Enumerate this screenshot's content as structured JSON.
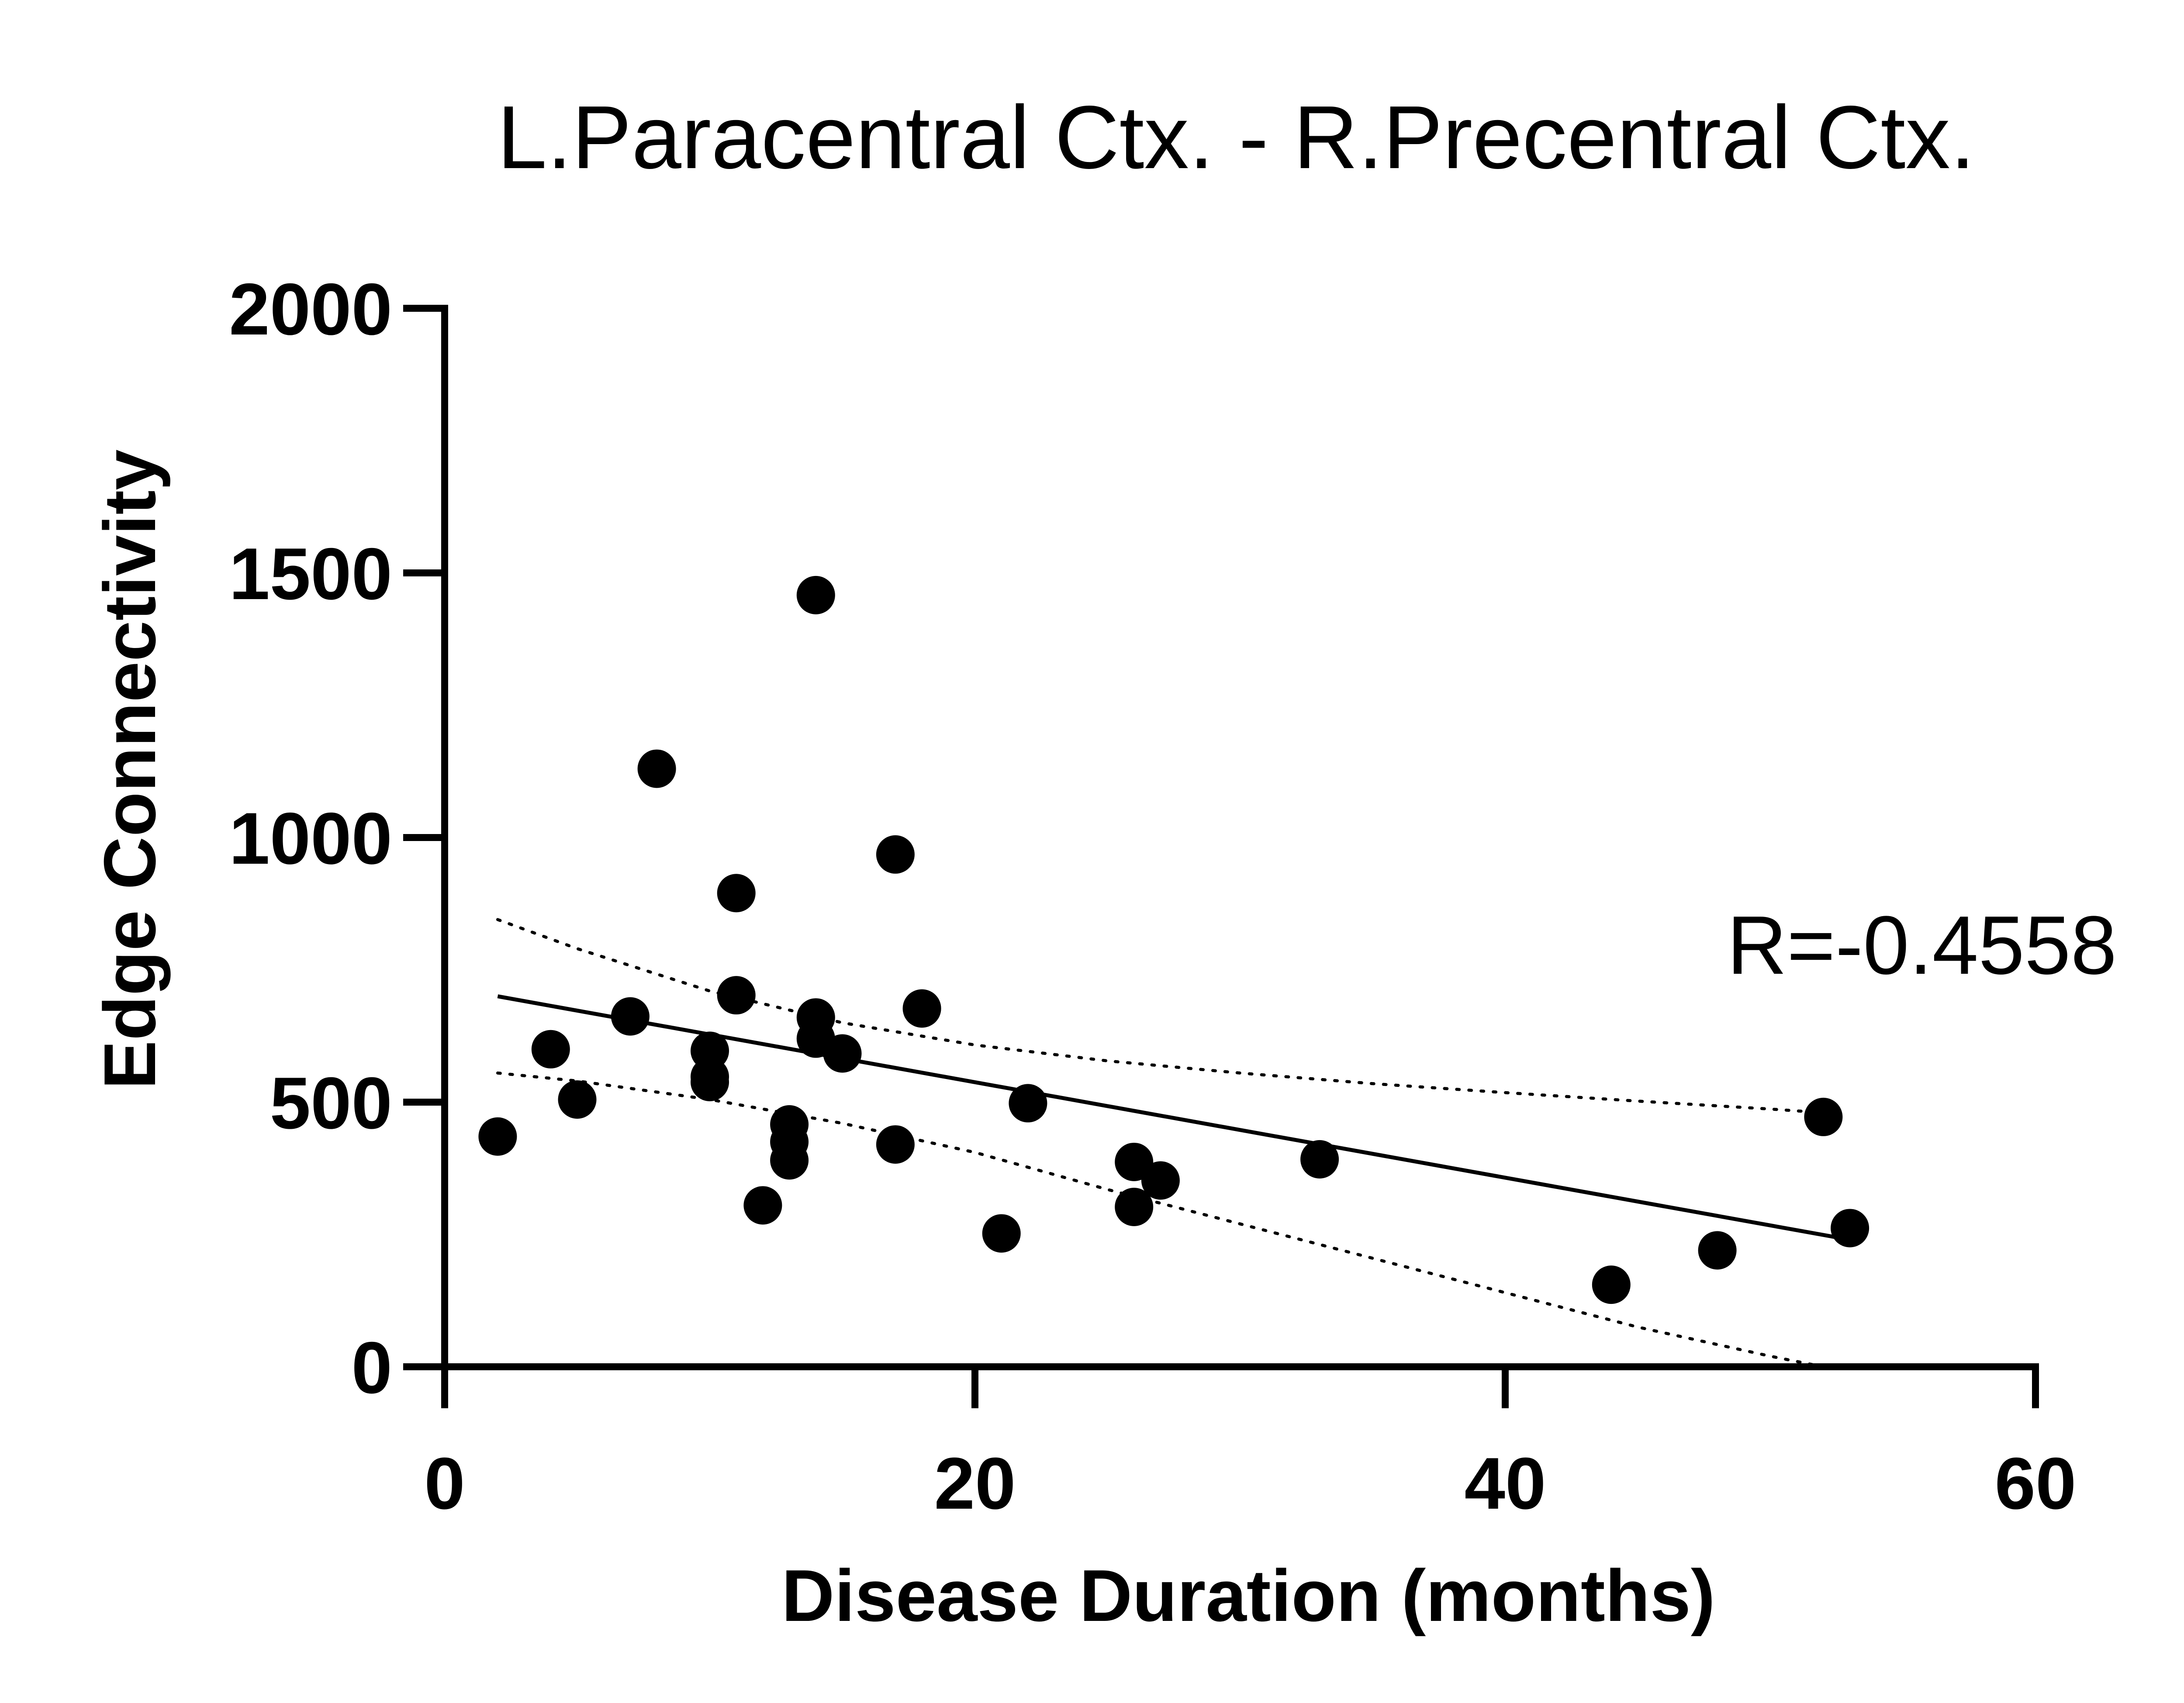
{
  "chart_data": {
    "type": "scatter",
    "title": "L.Paracentral Ctx. - R.Precentral Ctx.",
    "xlabel": "Disease Duration (months)",
    "ylabel": "Edge Connectivity",
    "xlim": [
      0,
      60
    ],
    "ylim": [
      0,
      2000
    ],
    "x_ticks": [
      0,
      20,
      40,
      60
    ],
    "y_ticks": [
      0,
      500,
      1000,
      1500,
      2000
    ],
    "x_tick_labels": [
      "0",
      "20",
      "40",
      "60"
    ],
    "y_tick_labels": [
      "0",
      "500",
      "1000",
      "1500",
      "2000"
    ],
    "annotation": "R=-0.4558",
    "grid": false,
    "series": [
      {
        "name": "subjects",
        "points": [
          {
            "x": 2,
            "y": 435
          },
          {
            "x": 4,
            "y": 600
          },
          {
            "x": 5,
            "y": 505
          },
          {
            "x": 7,
            "y": 662
          },
          {
            "x": 8,
            "y": 1130
          },
          {
            "x": 10,
            "y": 597
          },
          {
            "x": 10,
            "y": 548
          },
          {
            "x": 10,
            "y": 538
          },
          {
            "x": 11,
            "y": 895
          },
          {
            "x": 11,
            "y": 702
          },
          {
            "x": 12,
            "y": 305
          },
          {
            "x": 13,
            "y": 458
          },
          {
            "x": 13,
            "y": 425
          },
          {
            "x": 13,
            "y": 390
          },
          {
            "x": 14,
            "y": 1458
          },
          {
            "x": 14,
            "y": 660
          },
          {
            "x": 14,
            "y": 620
          },
          {
            "x": 15,
            "y": 592
          },
          {
            "x": 17,
            "y": 968
          },
          {
            "x": 17,
            "y": 420
          },
          {
            "x": 18,
            "y": 677
          },
          {
            "x": 21,
            "y": 252
          },
          {
            "x": 22,
            "y": 498
          },
          {
            "x": 26,
            "y": 387
          },
          {
            "x": 26,
            "y": 302
          },
          {
            "x": 27,
            "y": 352
          },
          {
            "x": 33,
            "y": 392
          },
          {
            "x": 44,
            "y": 155
          },
          {
            "x": 48,
            "y": 220
          },
          {
            "x": 52,
            "y": 472
          },
          {
            "x": 53,
            "y": 262
          }
        ]
      }
    ],
    "fit_line": {
      "x": [
        2,
        53
      ],
      "y": [
        700,
        240
      ]
    },
    "confidence_upper": {
      "x": [
        2,
        5,
        10,
        15,
        20,
        25,
        30,
        35,
        40,
        45,
        50,
        52
      ],
      "y": [
        845,
        790,
        710,
        650,
        608,
        578,
        555,
        535,
        518,
        502,
        487,
        480
      ]
    },
    "confidence_lower": {
      "x": [
        2,
        5,
        10,
        15,
        20,
        25,
        30,
        35,
        40,
        45,
        50,
        52
      ],
      "y": [
        555,
        540,
        505,
        460,
        405,
        335,
        270,
        205,
        140,
        75,
        20,
        0
      ]
    },
    "colors": {
      "marker": "#000000",
      "axis": "#000000",
      "background": "#ffffff"
    }
  }
}
